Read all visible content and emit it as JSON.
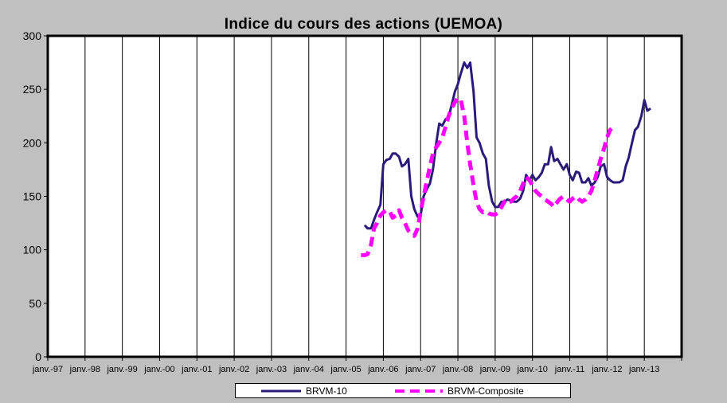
{
  "chart_data": {
    "type": "line",
    "title": "Indice du cours des actions  (UEMOA)",
    "xlabel": "",
    "ylabel": "",
    "ylim": [
      0,
      300
    ],
    "yticks": [
      "0",
      "50",
      "100",
      "150",
      "200",
      "250",
      "300"
    ],
    "x_tick_labels": [
      "janv.-97",
      "janv.-98",
      "janv.-99",
      "janv.-00",
      "janv.-01",
      "janv.-02",
      "janv.-03",
      "janv.-04",
      "janv.-05",
      "janv.-06",
      "janv.-07",
      "janv.-08",
      "janv.-09",
      "janv.-10",
      "janv.-11",
      "janv.-12",
      "janv.-13"
    ],
    "x_range_years": [
      1997,
      2014
    ],
    "grid": "vertical",
    "legend_position": "bottom",
    "series": [
      {
        "name": "BRVM-10",
        "color": "#2b1a7a",
        "style": "solid",
        "points": [
          [
            2005.5,
            123
          ],
          [
            2005.58,
            120
          ],
          [
            2005.67,
            120
          ],
          [
            2005.75,
            128
          ],
          [
            2005.83,
            135
          ],
          [
            2005.92,
            142
          ],
          [
            2006.0,
            180
          ],
          [
            2006.08,
            184
          ],
          [
            2006.17,
            185
          ],
          [
            2006.25,
            190
          ],
          [
            2006.33,
            190
          ],
          [
            2006.42,
            187
          ],
          [
            2006.5,
            178
          ],
          [
            2006.58,
            180
          ],
          [
            2006.67,
            185
          ],
          [
            2006.75,
            150
          ],
          [
            2006.83,
            138
          ],
          [
            2006.92,
            131
          ],
          [
            2007.0,
            132
          ],
          [
            2007.08,
            150
          ],
          [
            2007.17,
            157
          ],
          [
            2007.25,
            162
          ],
          [
            2007.33,
            175
          ],
          [
            2007.42,
            200
          ],
          [
            2007.5,
            218
          ],
          [
            2007.58,
            216
          ],
          [
            2007.67,
            222
          ],
          [
            2007.75,
            224
          ],
          [
            2007.83,
            235
          ],
          [
            2007.92,
            248
          ],
          [
            2008.0,
            255
          ],
          [
            2008.08,
            265
          ],
          [
            2008.17,
            275
          ],
          [
            2008.25,
            270
          ],
          [
            2008.33,
            275
          ],
          [
            2008.42,
            248
          ],
          [
            2008.5,
            205
          ],
          [
            2008.58,
            200
          ],
          [
            2008.67,
            190
          ],
          [
            2008.75,
            185
          ],
          [
            2008.83,
            160
          ],
          [
            2008.92,
            145
          ],
          [
            2009.0,
            140
          ],
          [
            2009.08,
            140
          ],
          [
            2009.17,
            145
          ],
          [
            2009.25,
            145
          ],
          [
            2009.33,
            147
          ],
          [
            2009.42,
            146
          ],
          [
            2009.5,
            145
          ],
          [
            2009.58,
            145
          ],
          [
            2009.67,
            148
          ],
          [
            2009.75,
            155
          ],
          [
            2009.83,
            170
          ],
          [
            2009.92,
            165
          ],
          [
            2010.0,
            170
          ],
          [
            2010.08,
            165
          ],
          [
            2010.17,
            168
          ],
          [
            2010.25,
            172
          ],
          [
            2010.33,
            180
          ],
          [
            2010.42,
            180
          ],
          [
            2010.5,
            196
          ],
          [
            2010.58,
            183
          ],
          [
            2010.67,
            185
          ],
          [
            2010.75,
            180
          ],
          [
            2010.83,
            175
          ],
          [
            2010.92,
            180
          ],
          [
            2011.0,
            170
          ],
          [
            2011.08,
            165
          ],
          [
            2011.17,
            173
          ],
          [
            2011.25,
            172
          ],
          [
            2011.33,
            163
          ],
          [
            2011.42,
            163
          ],
          [
            2011.5,
            167
          ],
          [
            2011.58,
            160
          ],
          [
            2011.67,
            163
          ],
          [
            2011.75,
            168
          ],
          [
            2011.83,
            178
          ],
          [
            2011.92,
            180
          ],
          [
            2012.0,
            168
          ],
          [
            2012.08,
            165
          ],
          [
            2012.17,
            163
          ],
          [
            2012.25,
            163
          ],
          [
            2012.33,
            163
          ],
          [
            2012.42,
            165
          ],
          [
            2012.5,
            178
          ],
          [
            2012.58,
            186
          ],
          [
            2012.67,
            200
          ],
          [
            2012.75,
            212
          ],
          [
            2012.83,
            215
          ],
          [
            2012.92,
            225
          ],
          [
            2013.0,
            240
          ],
          [
            2013.08,
            230
          ],
          [
            2013.17,
            232
          ]
        ]
      },
      {
        "name": "BRVM-Composite",
        "color": "#ff00ff",
        "style": "dashed",
        "points": [
          [
            2005.4,
            95
          ],
          [
            2005.5,
            95
          ],
          [
            2005.58,
            96
          ],
          [
            2005.67,
            105
          ],
          [
            2005.75,
            120
          ],
          [
            2005.83,
            125
          ],
          [
            2005.92,
            132
          ],
          [
            2006.0,
            135
          ],
          [
            2006.08,
            137
          ],
          [
            2006.17,
            136
          ],
          [
            2006.25,
            130
          ],
          [
            2006.33,
            132
          ],
          [
            2006.42,
            137
          ],
          [
            2006.5,
            130
          ],
          [
            2006.58,
            125
          ],
          [
            2006.67,
            118
          ],
          [
            2006.75,
            115
          ],
          [
            2006.83,
            113
          ],
          [
            2006.92,
            120
          ],
          [
            2007.0,
            135
          ],
          [
            2007.08,
            150
          ],
          [
            2007.17,
            165
          ],
          [
            2007.25,
            178
          ],
          [
            2007.33,
            190
          ],
          [
            2007.42,
            196
          ],
          [
            2007.5,
            200
          ],
          [
            2007.58,
            205
          ],
          [
            2007.67,
            215
          ],
          [
            2007.75,
            225
          ],
          [
            2007.83,
            232
          ],
          [
            2007.92,
            238
          ],
          [
            2008.0,
            242
          ],
          [
            2008.08,
            240
          ],
          [
            2008.17,
            225
          ],
          [
            2008.25,
            200
          ],
          [
            2008.33,
            180
          ],
          [
            2008.42,
            160
          ],
          [
            2008.5,
            145
          ],
          [
            2008.58,
            138
          ],
          [
            2008.67,
            135
          ],
          [
            2008.75,
            136
          ],
          [
            2008.83,
            134
          ],
          [
            2008.92,
            133
          ],
          [
            2009.0,
            133
          ],
          [
            2009.08,
            135
          ],
          [
            2009.17,
            140
          ],
          [
            2009.25,
            145
          ],
          [
            2009.33,
            147
          ],
          [
            2009.42,
            145
          ],
          [
            2009.5,
            148
          ],
          [
            2009.58,
            150
          ],
          [
            2009.67,
            155
          ],
          [
            2009.75,
            162
          ],
          [
            2009.83,
            168
          ],
          [
            2009.92,
            165
          ],
          [
            2010.0,
            160
          ],
          [
            2010.08,
            155
          ],
          [
            2010.17,
            152
          ],
          [
            2010.25,
            150
          ],
          [
            2010.33,
            147
          ],
          [
            2010.42,
            145
          ],
          [
            2010.5,
            143
          ],
          [
            2010.58,
            140
          ],
          [
            2010.67,
            145
          ],
          [
            2010.75,
            148
          ],
          [
            2010.83,
            150
          ],
          [
            2010.92,
            147
          ],
          [
            2011.0,
            145
          ],
          [
            2011.08,
            148
          ],
          [
            2011.17,
            150
          ],
          [
            2011.25,
            147
          ],
          [
            2011.33,
            145
          ],
          [
            2011.42,
            147
          ],
          [
            2011.5,
            150
          ],
          [
            2011.58,
            155
          ],
          [
            2011.67,
            165
          ],
          [
            2011.75,
            175
          ],
          [
            2011.83,
            185
          ],
          [
            2011.92,
            195
          ],
          [
            2012.0,
            205
          ],
          [
            2012.08,
            212
          ],
          [
            2012.17,
            215
          ]
        ]
      }
    ]
  }
}
